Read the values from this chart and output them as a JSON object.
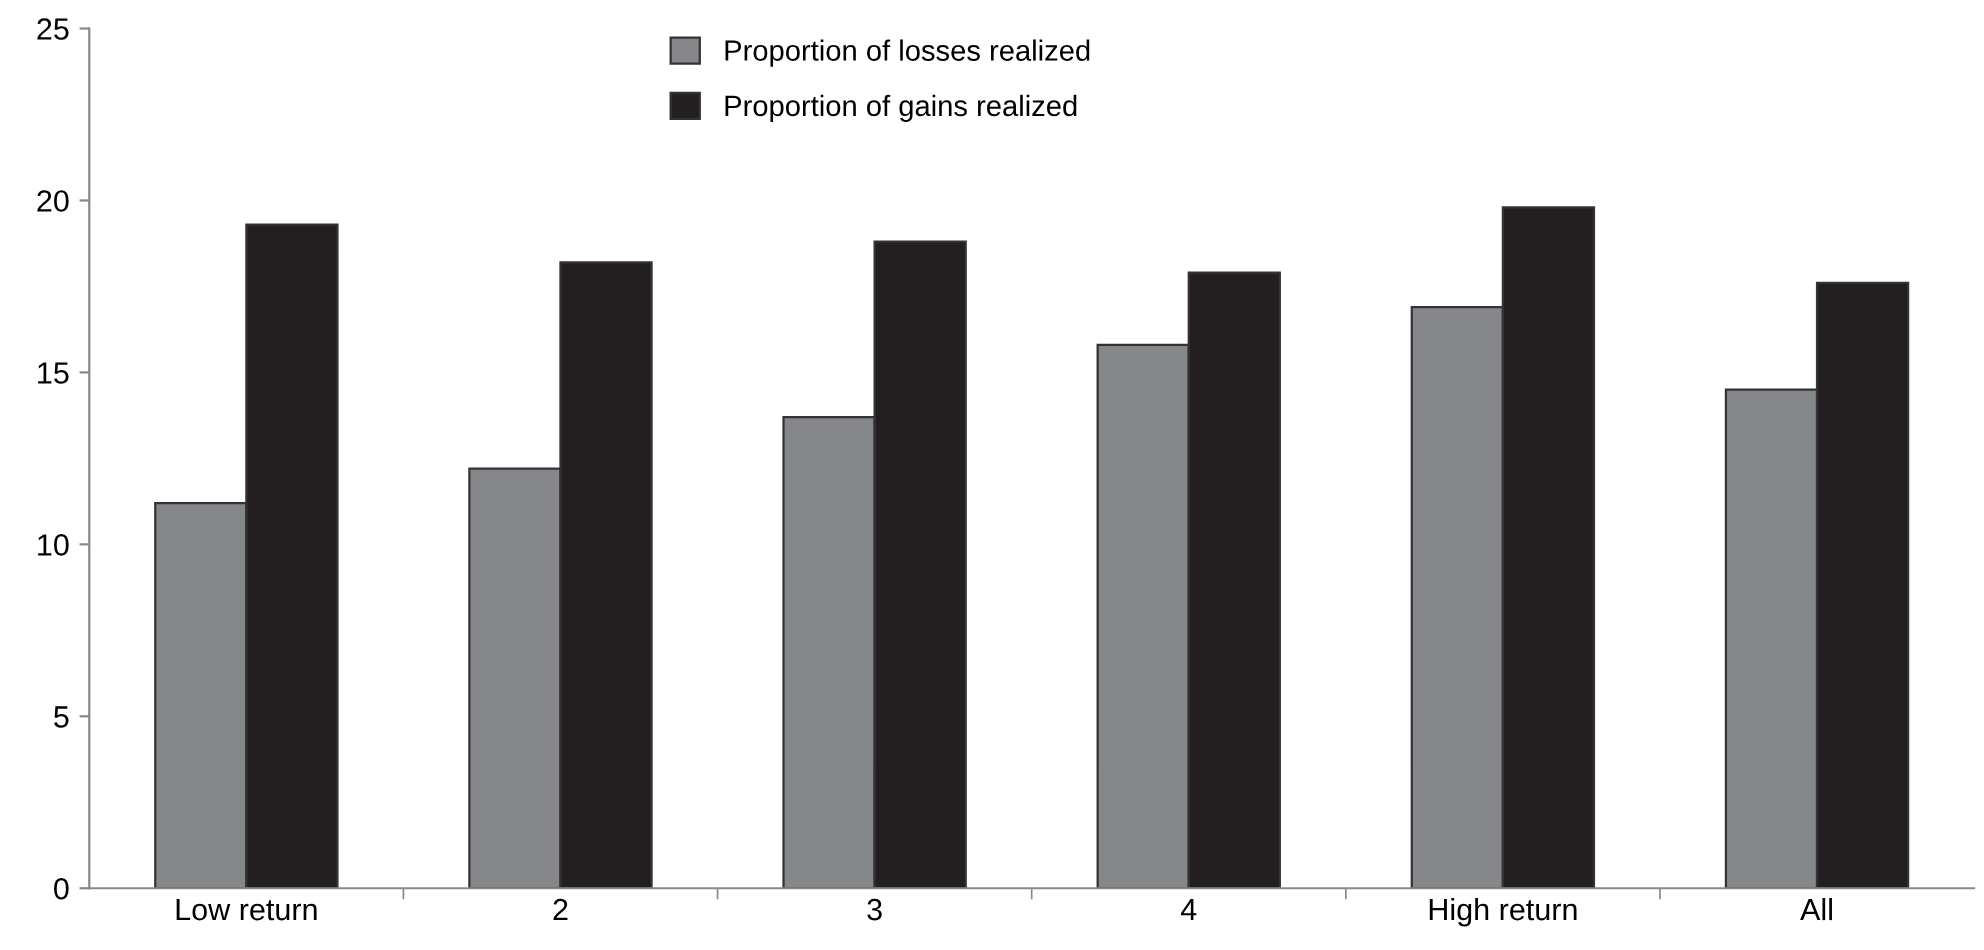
{
  "chart_data": {
    "type": "bar",
    "categories": [
      "Low return",
      "2",
      "3",
      "4",
      "High return",
      "All"
    ],
    "series": [
      {
        "name": "Proportion of losses realized",
        "color": "#86878b",
        "values": [
          11.2,
          12.2,
          13.7,
          15.8,
          16.9,
          14.5
        ]
      },
      {
        "name": "Proportion of gains realized",
        "color": "#231f20",
        "values": [
          19.3,
          18.2,
          18.8,
          17.9,
          19.8,
          17.6
        ]
      }
    ],
    "ylim": [
      0,
      25
    ],
    "yticks": [
      0,
      5,
      10,
      15,
      20,
      25
    ],
    "grid": false,
    "legend": "top"
  }
}
